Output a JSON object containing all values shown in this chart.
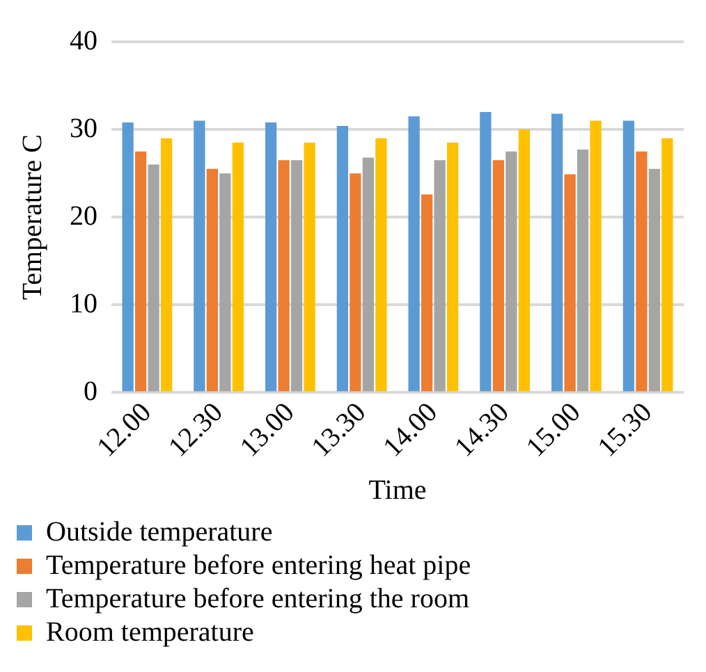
{
  "chart_data": {
    "type": "bar",
    "xlabel": "Time",
    "ylabel": "Temperature C",
    "categories": [
      "12.00",
      "12.30",
      "13.00",
      "13.30",
      "14.00",
      "14.30",
      "15.00",
      "15.30"
    ],
    "series": [
      {
        "name": "Outside temperature",
        "color": "#5b9bd5",
        "values": [
          30.8,
          31.0,
          30.8,
          30.4,
          31.5,
          32.0,
          31.8,
          31.0
        ]
      },
      {
        "name": "Temperature before entering heat pipe",
        "color": "#ed7d31",
        "values": [
          27.5,
          25.5,
          26.5,
          25.0,
          22.6,
          26.5,
          24.9,
          27.5
        ]
      },
      {
        "name": "Temperature before entering the room",
        "color": "#a5a5a5",
        "values": [
          26.0,
          25.0,
          26.5,
          26.8,
          26.5,
          27.5,
          27.7,
          25.5
        ]
      },
      {
        "name": "Room temperature",
        "color": "#ffc000",
        "values": [
          29.0,
          28.5,
          28.5,
          29.0,
          28.5,
          30.0,
          31.0,
          29.0
        ]
      }
    ],
    "ylim": [
      0,
      40
    ],
    "yticks": [
      0,
      10,
      20,
      30,
      40
    ],
    "grid": "y",
    "legend": "bottom"
  }
}
